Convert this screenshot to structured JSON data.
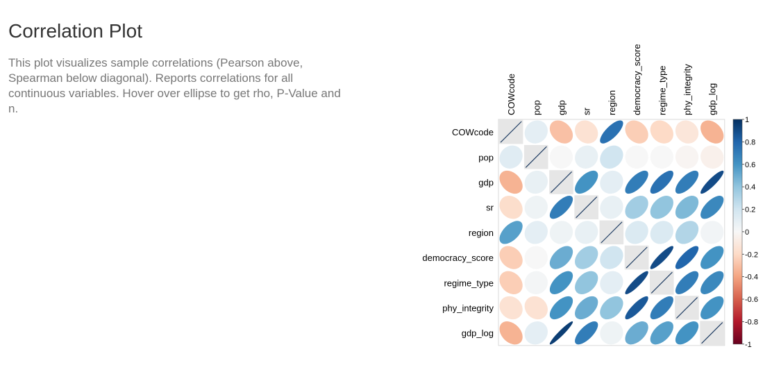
{
  "page": {
    "title": "Correlation Plot",
    "description": "This plot visualizes sample correlations (Pearson above, Spearman below diagonal). Reports correlations for all continuous variables. Hover over ellipse to get rho, P-Value and n."
  },
  "chart_data": {
    "type": "heatmap",
    "subtype": "correlation-ellipse",
    "variables": [
      "COWcode",
      "pop",
      "gdp",
      "sr",
      "region",
      "democracy_score",
      "regime_type",
      "phy_integrity",
      "gdp_log"
    ],
    "upper_method": "Pearson",
    "lower_method": "Spearman",
    "matrix": [
      [
        1.0,
        0.1,
        -0.3,
        -0.15,
        0.75,
        -0.25,
        -0.2,
        -0.12,
        -0.35
      ],
      [
        0.12,
        1.0,
        0.0,
        0.08,
        0.2,
        0.0,
        0.0,
        -0.02,
        -0.05
      ],
      [
        -0.35,
        0.08,
        1.0,
        0.6,
        0.1,
        0.7,
        0.75,
        0.7,
        0.9
      ],
      [
        -0.18,
        0.05,
        0.7,
        1.0,
        0.08,
        0.35,
        0.4,
        0.45,
        0.65
      ],
      [
        0.55,
        0.1,
        0.05,
        0.08,
        1.0,
        0.15,
        0.15,
        0.3,
        0.03
      ],
      [
        -0.25,
        0.0,
        0.5,
        0.35,
        0.2,
        1.0,
        0.9,
        0.8,
        0.6
      ],
      [
        -0.25,
        0.02,
        0.6,
        0.4,
        0.1,
        0.9,
        1.0,
        0.7,
        0.65
      ],
      [
        -0.15,
        -0.15,
        0.6,
        0.5,
        0.4,
        0.85,
        0.7,
        1.0,
        0.6
      ],
      [
        -0.35,
        0.1,
        0.95,
        0.7,
        0.05,
        0.5,
        0.55,
        0.6,
        1.0
      ]
    ],
    "legend": {
      "range": [
        -1,
        1
      ],
      "ticks": [
        "1",
        "0.8",
        "0.6",
        "0.4",
        "0.2",
        "0",
        "-0.2",
        "-0.4",
        "-0.6",
        "-0.8",
        "-1"
      ],
      "placement": "right"
    },
    "colors": {
      "neg": "#67001f",
      "pos": "#053061",
      "diagonal_line": "#1f3c62",
      "diagonal_bg": "#e6e6e6",
      "grid": "#ffffff"
    }
  }
}
